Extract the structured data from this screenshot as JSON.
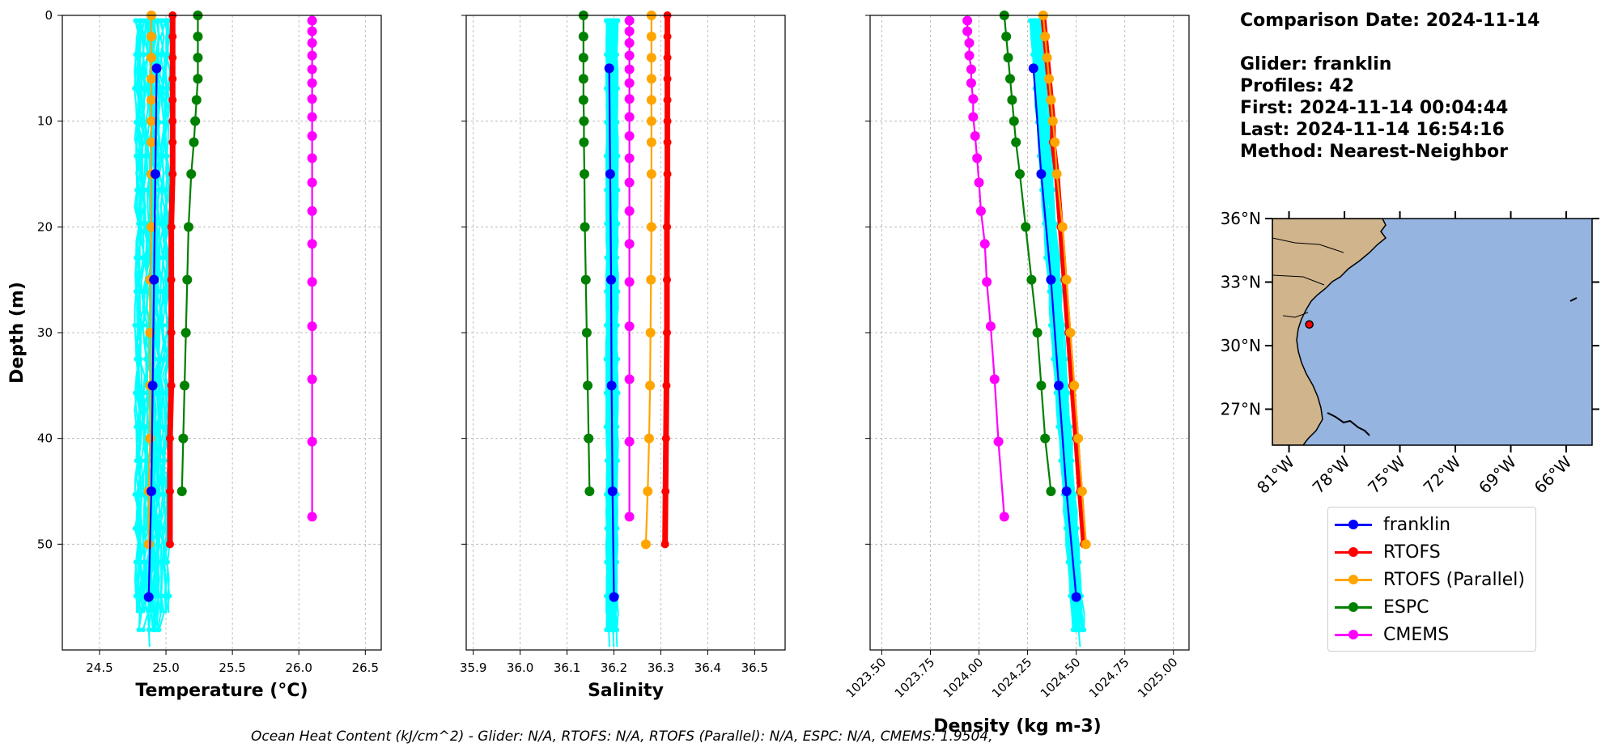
{
  "info": {
    "comparison_date": "Comparison Date: 2024-11-14",
    "glider": "Glider: franklin",
    "profiles": "Profiles: 42",
    "first": "First: 2024-11-14 00:04:44",
    "last": "Last: 2024-11-14 16:54:16",
    "method": "Method: Nearest-Neighbor"
  },
  "footer": "Ocean Heat Content (kJ/cm^2) - Glider: N/A,  RTOFS: N/A,  RTOFS (Parallel): N/A,  ESPC: N/A,  CMEMS: 1.9504,",
  "legend": [
    {
      "name": "franklin",
      "color": "#0000ff"
    },
    {
      "name": "RTOFS",
      "color": "#ff0000"
    },
    {
      "name": "RTOFS (Parallel)",
      "color": "#ffa500"
    },
    {
      "name": "ESPC",
      "color": "#008000"
    },
    {
      "name": "CMEMS",
      "color": "#ff00ff"
    }
  ],
  "chart_data": [
    {
      "type": "line",
      "xlabel": "Temperature (°C)",
      "ylabel": "Depth (m)",
      "xlim": [
        24.22,
        26.62
      ],
      "ylim": [
        60,
        0
      ],
      "xticks": [
        "24.5",
        "25.0",
        "25.5",
        "26.0",
        "26.5"
      ],
      "xtick_values": [
        24.5,
        25.0,
        25.5,
        26.0,
        26.5
      ],
      "yticks": [
        "0",
        "10",
        "20",
        "30",
        "40",
        "50"
      ],
      "ytick_values": [
        0,
        10,
        20,
        30,
        40,
        50
      ],
      "grid": true,
      "glider_profiles": {
        "color": "#00ffff",
        "x_center": 24.9,
        "x_spread": 0.12,
        "depth_max": 60
      },
      "series": [
        {
          "name": "RTOFS",
          "color": "#ff0000",
          "thick": true,
          "depth": [
            0,
            2,
            4,
            6,
            8,
            10,
            12,
            15,
            20,
            25,
            30,
            35,
            40,
            45,
            50
          ],
          "values": [
            25.05,
            25.05,
            25.05,
            25.05,
            25.05,
            25.05,
            25.05,
            25.05,
            25.04,
            25.04,
            25.04,
            25.04,
            25.03,
            25.03,
            25.03
          ]
        },
        {
          "name": "RTOFS (Parallel)",
          "color": "#ffa500",
          "depth": [
            0,
            2,
            4,
            6,
            8,
            10,
            12,
            15,
            20,
            25,
            30,
            35,
            40,
            45,
            50
          ],
          "values": [
            24.89,
            24.89,
            24.89,
            24.89,
            24.89,
            24.89,
            24.89,
            24.89,
            24.89,
            24.88,
            24.88,
            24.88,
            24.88,
            24.87,
            24.87
          ]
        },
        {
          "name": "ESPC",
          "color": "#008000",
          "depth": [
            0,
            2,
            4,
            6,
            8,
            10,
            12,
            15,
            20,
            25,
            30,
            35,
            40,
            45
          ],
          "values": [
            25.24,
            25.24,
            25.24,
            25.24,
            25.23,
            25.22,
            25.21,
            25.19,
            25.17,
            25.16,
            25.15,
            25.14,
            25.13,
            25.12
          ]
        },
        {
          "name": "CMEMS",
          "color": "#ff00ff",
          "depth": [
            0.5,
            1.5,
            2.6,
            3.8,
            5.1,
            6.4,
            7.9,
            9.6,
            11.4,
            13.5,
            15.8,
            18.5,
            21.6,
            25.2,
            29.4,
            34.4,
            40.3,
            47.4
          ],
          "values": [
            26.1,
            26.1,
            26.1,
            26.1,
            26.1,
            26.1,
            26.1,
            26.1,
            26.1,
            26.1,
            26.1,
            26.1,
            26.1,
            26.1,
            26.1,
            26.1,
            26.1,
            26.1
          ]
        },
        {
          "name": "franklin",
          "color": "#0000ff",
          "depth": [
            5,
            15,
            25,
            35,
            45,
            55
          ],
          "values": [
            24.93,
            24.92,
            24.91,
            24.9,
            24.89,
            24.87
          ]
        }
      ]
    },
    {
      "type": "line",
      "xlabel": "Salinity",
      "ylabel": "",
      "xlim": [
        35.885,
        36.565
      ],
      "ylim": [
        60,
        0
      ],
      "xticks": [
        "35.9",
        "36.0",
        "36.1",
        "36.2",
        "36.3",
        "36.4",
        "36.5"
      ],
      "xtick_values": [
        35.9,
        36.0,
        36.1,
        36.2,
        36.3,
        36.4,
        36.5
      ],
      "yticks": [],
      "ytick_values": [
        0,
        10,
        20,
        30,
        40,
        50
      ],
      "grid": true,
      "glider_profiles": {
        "color": "#00ffff",
        "x_center": 36.195,
        "x_spread": 0.012,
        "depth_max": 60
      },
      "series": [
        {
          "name": "RTOFS",
          "color": "#ff0000",
          "thick": true,
          "depth": [
            0,
            2,
            4,
            6,
            8,
            10,
            12,
            15,
            20,
            25,
            30,
            35,
            40,
            45,
            50
          ],
          "values": [
            36.314,
            36.314,
            36.314,
            36.314,
            36.314,
            36.314,
            36.314,
            36.314,
            36.313,
            36.313,
            36.313,
            36.312,
            36.311,
            36.31,
            36.309
          ]
        },
        {
          "name": "RTOFS (Parallel)",
          "color": "#ffa500",
          "depth": [
            0,
            2,
            4,
            6,
            8,
            10,
            12,
            15,
            20,
            25,
            30,
            35,
            40,
            45,
            50
          ],
          "values": [
            36.28,
            36.28,
            36.28,
            36.28,
            36.28,
            36.28,
            36.28,
            36.28,
            36.28,
            36.279,
            36.278,
            36.277,
            36.275,
            36.272,
            36.268
          ]
        },
        {
          "name": "ESPC",
          "color": "#008000",
          "depth": [
            0,
            2,
            4,
            6,
            8,
            10,
            12,
            15,
            20,
            25,
            30,
            35,
            40,
            45
          ],
          "values": [
            36.135,
            36.135,
            36.135,
            36.135,
            36.135,
            36.136,
            36.136,
            36.137,
            36.138,
            36.14,
            36.142,
            36.144,
            36.146,
            36.148
          ]
        },
        {
          "name": "CMEMS",
          "color": "#ff00ff",
          "depth": [
            0.5,
            1.5,
            2.6,
            3.8,
            5.1,
            6.4,
            7.9,
            9.6,
            11.4,
            13.5,
            15.8,
            18.5,
            21.6,
            25.2,
            29.4,
            34.4,
            40.3,
            47.4
          ],
          "values": [
            36.233,
            36.233,
            36.233,
            36.233,
            36.233,
            36.233,
            36.233,
            36.233,
            36.233,
            36.233,
            36.233,
            36.233,
            36.233,
            36.233,
            36.233,
            36.233,
            36.233,
            36.233
          ]
        },
        {
          "name": "franklin",
          "color": "#0000ff",
          "depth": [
            5,
            15,
            25,
            35,
            45,
            55
          ],
          "values": [
            36.19,
            36.192,
            36.194,
            36.195,
            36.197,
            36.2
          ]
        }
      ]
    },
    {
      "type": "line",
      "xlabel": "Density (kg m-3)",
      "ylabel": "",
      "xlim": [
        1023.44,
        1025.08
      ],
      "ylim": [
        60,
        0
      ],
      "xticks": [
        "1023.50",
        "1023.75",
        "1024.00",
        "1024.25",
        "1024.50",
        "1024.75",
        "1025.00"
      ],
      "xtick_values": [
        1023.5,
        1023.75,
        1024.0,
        1024.25,
        1024.5,
        1024.75,
        1025.0
      ],
      "yticks": [],
      "ytick_values": [
        0,
        10,
        20,
        30,
        40,
        50
      ],
      "grid": true,
      "glider_profiles": {
        "color": "#00ffff",
        "x_center_top": 1024.29,
        "x_center_bottom": 1024.52,
        "x_spread": 0.03,
        "depth_max": 60
      },
      "series": [
        {
          "name": "RTOFS",
          "color": "#ff0000",
          "thick": true,
          "depth": [
            0,
            2,
            4,
            6,
            8,
            10,
            12,
            15,
            20,
            25,
            30,
            35,
            40,
            45,
            50
          ],
          "values": [
            1024.33,
            1024.34,
            1024.35,
            1024.36,
            1024.37,
            1024.38,
            1024.38,
            1024.4,
            1024.42,
            1024.44,
            1024.46,
            1024.48,
            1024.5,
            1024.52,
            1024.54
          ]
        },
        {
          "name": "RTOFS (Parallel)",
          "color": "#ffa500",
          "depth": [
            0,
            2,
            4,
            6,
            8,
            10,
            12,
            15,
            20,
            25,
            30,
            35,
            40,
            45,
            50
          ],
          "values": [
            1024.33,
            1024.34,
            1024.35,
            1024.36,
            1024.37,
            1024.38,
            1024.39,
            1024.4,
            1024.43,
            1024.45,
            1024.47,
            1024.49,
            1024.51,
            1024.53,
            1024.55
          ]
        },
        {
          "name": "ESPC",
          "color": "#008000",
          "depth": [
            0,
            2,
            4,
            6,
            8,
            10,
            12,
            15,
            20,
            25,
            30,
            35,
            40,
            45
          ],
          "values": [
            1024.13,
            1024.14,
            1024.15,
            1024.16,
            1024.17,
            1024.18,
            1024.19,
            1024.21,
            1024.24,
            1024.27,
            1024.3,
            1024.32,
            1024.34,
            1024.37
          ]
        },
        {
          "name": "CMEMS",
          "color": "#ff00ff",
          "depth": [
            0.5,
            1.5,
            2.6,
            3.8,
            5.1,
            6.4,
            7.9,
            9.6,
            11.4,
            13.5,
            15.8,
            18.5,
            21.6,
            25.2,
            29.4,
            34.4,
            40.3,
            47.4
          ],
          "values": [
            1023.94,
            1023.94,
            1023.95,
            1023.95,
            1023.96,
            1023.96,
            1023.97,
            1023.97,
            1023.98,
            1023.99,
            1024.0,
            1024.01,
            1024.03,
            1024.04,
            1024.06,
            1024.08,
            1024.1,
            1024.13
          ]
        },
        {
          "name": "franklin",
          "color": "#0000ff",
          "depth": [
            5,
            15,
            25,
            35,
            45,
            55
          ],
          "values": [
            1024.28,
            1024.32,
            1024.37,
            1024.41,
            1024.45,
            1024.5
          ]
        }
      ]
    },
    {
      "type": "map",
      "lat_ticks": [
        "36°N",
        "33°N",
        "30°N",
        "27°N"
      ],
      "lat_values": [
        36,
        33,
        30,
        27
      ],
      "lon_ticks": [
        "81°W",
        "78°W",
        "75°W",
        "72°W",
        "69°W",
        "66°W"
      ],
      "lon_values": [
        -81,
        -78,
        -75,
        -72,
        -69,
        -66
      ],
      "extent": {
        "lon_min": -81.9,
        "lon_max": -64.6,
        "lat_min": 25.3,
        "lat_max": 36.0
      },
      "ocean_color": "#95b4e0",
      "land_color": "#d0b48c",
      "marker": {
        "lon": -79.9,
        "lat": 31.0,
        "color": "#ff0000"
      }
    }
  ]
}
